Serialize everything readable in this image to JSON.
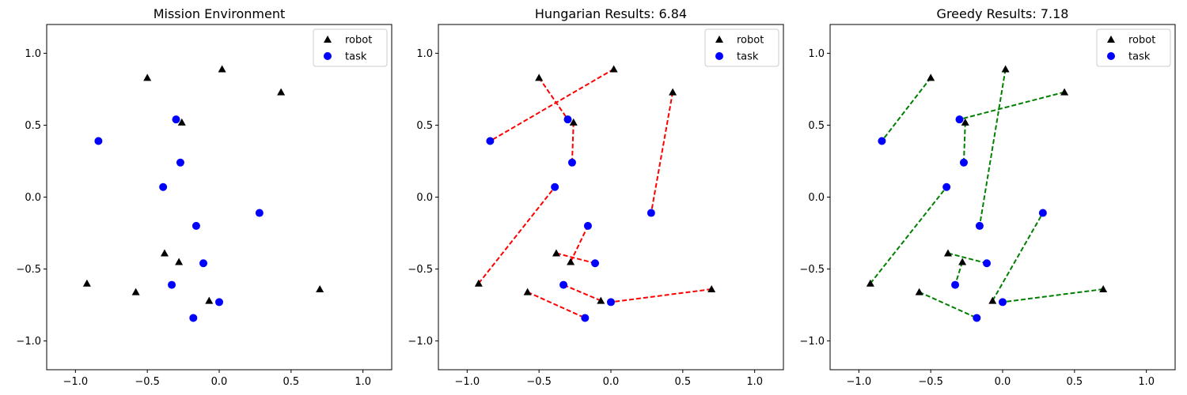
{
  "chart_data": [
    {
      "type": "scatter",
      "title": "Mission Environment",
      "xlim": [
        -1.2,
        1.2
      ],
      "ylim": [
        -1.2,
        1.2
      ],
      "xticks": [
        -1.0,
        -0.5,
        0.0,
        0.5,
        1.0
      ],
      "yticks": [
        -1.0,
        -0.5,
        0.0,
        0.5,
        1.0
      ],
      "xtick_labels": [
        "−1.0",
        "−0.5",
        "0.0",
        "0.5",
        "1.0"
      ],
      "ytick_labels": [
        "−1.0",
        "−0.5",
        "0.0",
        "0.5",
        "1.0"
      ],
      "legend": {
        "placement": "upper-right",
        "robot_label": "robot",
        "task_label": "task"
      },
      "robots": [
        [
          -0.5,
          0.83
        ],
        [
          0.02,
          0.89
        ],
        [
          0.43,
          0.73
        ],
        [
          -0.26,
          0.52
        ],
        [
          -0.38,
          -0.39
        ],
        [
          -0.28,
          -0.45
        ],
        [
          -0.92,
          -0.6
        ],
        [
          -0.58,
          -0.66
        ],
        [
          -0.07,
          -0.72
        ],
        [
          0.7,
          -0.64
        ]
      ],
      "tasks": [
        [
          -0.3,
          0.54
        ],
        [
          -0.84,
          0.39
        ],
        [
          -0.27,
          0.24
        ],
        [
          -0.39,
          0.07
        ],
        [
          0.28,
          -0.11
        ],
        [
          -0.16,
          -0.2
        ],
        [
          -0.11,
          -0.46
        ],
        [
          -0.33,
          -0.61
        ],
        [
          0.0,
          -0.73
        ],
        [
          -0.18,
          -0.84
        ]
      ],
      "assignments": []
    },
    {
      "type": "scatter",
      "title": "Hungarian Results: 6.84",
      "xlim": [
        -1.2,
        1.2
      ],
      "ylim": [
        -1.2,
        1.2
      ],
      "xticks": [
        -1.0,
        -0.5,
        0.0,
        0.5,
        1.0
      ],
      "yticks": [
        -1.0,
        -0.5,
        0.0,
        0.5,
        1.0
      ],
      "xtick_labels": [
        "−1.0",
        "−0.5",
        "0.0",
        "0.5",
        "1.0"
      ],
      "ytick_labels": [
        "−1.0",
        "−0.5",
        "0.0",
        "0.5",
        "1.0"
      ],
      "legend": {
        "placement": "upper-right",
        "robot_label": "robot",
        "task_label": "task"
      },
      "line_color": "#ff0000",
      "robots": [
        [
          -0.5,
          0.83
        ],
        [
          0.02,
          0.89
        ],
        [
          0.43,
          0.73
        ],
        [
          -0.26,
          0.52
        ],
        [
          -0.38,
          -0.39
        ],
        [
          -0.28,
          -0.45
        ],
        [
          -0.92,
          -0.6
        ],
        [
          -0.58,
          -0.66
        ],
        [
          -0.07,
          -0.72
        ],
        [
          0.7,
          -0.64
        ]
      ],
      "tasks": [
        [
          -0.3,
          0.54
        ],
        [
          -0.84,
          0.39
        ],
        [
          -0.27,
          0.24
        ],
        [
          -0.39,
          0.07
        ],
        [
          0.28,
          -0.11
        ],
        [
          -0.16,
          -0.2
        ],
        [
          -0.11,
          -0.46
        ],
        [
          -0.33,
          -0.61
        ],
        [
          0.0,
          -0.73
        ],
        [
          -0.18,
          -0.84
        ]
      ],
      "assignments": [
        [
          [
            -0.5,
            0.83
          ],
          [
            -0.3,
            0.54
          ]
        ],
        [
          [
            0.02,
            0.89
          ],
          [
            -0.84,
            0.39
          ]
        ],
        [
          [
            0.43,
            0.73
          ],
          [
            0.28,
            -0.11
          ]
        ],
        [
          [
            -0.26,
            0.52
          ],
          [
            -0.27,
            0.24
          ]
        ],
        [
          [
            -0.92,
            -0.6
          ],
          [
            -0.39,
            0.07
          ]
        ],
        [
          [
            -0.28,
            -0.45
          ],
          [
            -0.16,
            -0.2
          ]
        ],
        [
          [
            -0.38,
            -0.39
          ],
          [
            -0.11,
            -0.46
          ]
        ],
        [
          [
            -0.07,
            -0.72
          ],
          [
            -0.33,
            -0.61
          ]
        ],
        [
          [
            0.7,
            -0.64
          ],
          [
            0.0,
            -0.73
          ]
        ],
        [
          [
            -0.58,
            -0.66
          ],
          [
            -0.18,
            -0.84
          ]
        ]
      ]
    },
    {
      "type": "scatter",
      "title": "Greedy Results: 7.18",
      "xlim": [
        -1.2,
        1.2
      ],
      "ylim": [
        -1.2,
        1.2
      ],
      "xticks": [
        -1.0,
        -0.5,
        0.0,
        0.5,
        1.0
      ],
      "yticks": [
        -1.0,
        -0.5,
        0.0,
        0.5,
        1.0
      ],
      "xtick_labels": [
        "−1.0",
        "−0.5",
        "0.0",
        "0.5",
        "1.0"
      ],
      "ytick_labels": [
        "−1.0",
        "−0.5",
        "0.0",
        "0.5",
        "1.0"
      ],
      "legend": {
        "placement": "upper-right",
        "robot_label": "robot",
        "task_label": "task"
      },
      "line_color": "#008000",
      "robots": [
        [
          -0.5,
          0.83
        ],
        [
          0.02,
          0.89
        ],
        [
          0.43,
          0.73
        ],
        [
          -0.26,
          0.52
        ],
        [
          -0.38,
          -0.39
        ],
        [
          -0.28,
          -0.45
        ],
        [
          -0.92,
          -0.6
        ],
        [
          -0.58,
          -0.66
        ],
        [
          -0.07,
          -0.72
        ],
        [
          0.7,
          -0.64
        ]
      ],
      "tasks": [
        [
          -0.3,
          0.54
        ],
        [
          -0.84,
          0.39
        ],
        [
          -0.27,
          0.24
        ],
        [
          -0.39,
          0.07
        ],
        [
          0.28,
          -0.11
        ],
        [
          -0.16,
          -0.2
        ],
        [
          -0.11,
          -0.46
        ],
        [
          -0.33,
          -0.61
        ],
        [
          0.0,
          -0.73
        ],
        [
          -0.18,
          -0.84
        ]
      ],
      "assignments": [
        [
          [
            -0.5,
            0.83
          ],
          [
            -0.84,
            0.39
          ]
        ],
        [
          [
            0.02,
            0.89
          ],
          [
            -0.16,
            -0.2
          ]
        ],
        [
          [
            0.43,
            0.73
          ],
          [
            -0.3,
            0.54
          ]
        ],
        [
          [
            -0.26,
            0.52
          ],
          [
            -0.27,
            0.24
          ]
        ],
        [
          [
            -0.92,
            -0.6
          ],
          [
            -0.39,
            0.07
          ]
        ],
        [
          [
            -0.38,
            -0.39
          ],
          [
            -0.11,
            -0.46
          ]
        ],
        [
          [
            -0.28,
            -0.45
          ],
          [
            -0.33,
            -0.61
          ]
        ],
        [
          [
            -0.07,
            -0.72
          ],
          [
            0.28,
            -0.11
          ]
        ],
        [
          [
            0.7,
            -0.64
          ],
          [
            0.0,
            -0.73
          ]
        ],
        [
          [
            -0.58,
            -0.66
          ],
          [
            -0.18,
            -0.84
          ]
        ]
      ]
    }
  ],
  "colors": {
    "robot": "#000000",
    "task": "#0000ff",
    "axis": "#000000",
    "background": "#ffffff"
  }
}
